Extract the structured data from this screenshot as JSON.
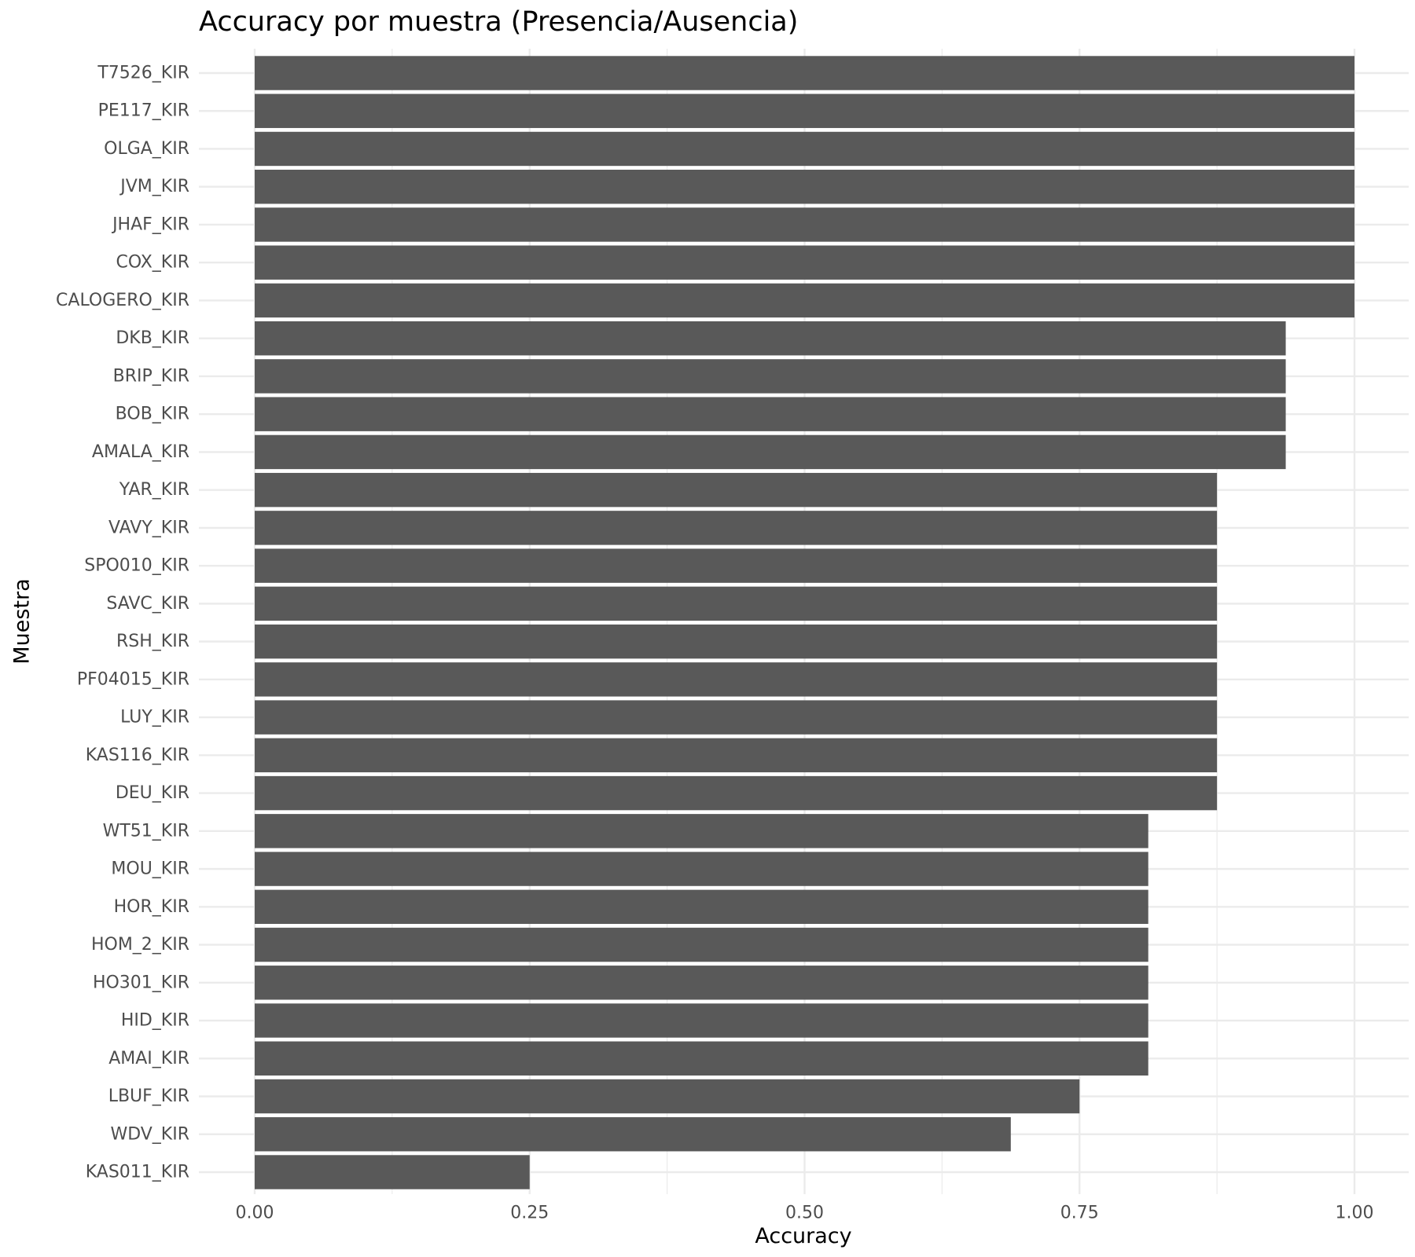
{
  "chart_data": {
    "type": "bar",
    "orientation": "horizontal",
    "title": "Accuracy por muestra (Presencia/Ausencia)",
    "xlabel": "Accuracy",
    "ylabel": "Muestra",
    "xlim": [
      0,
      1
    ],
    "x_ticks": [
      "0.00",
      "0.25",
      "0.50",
      "0.75",
      "1.00"
    ],
    "grid": true,
    "bar_color": "#595959",
    "grid_color": "#ebebeb",
    "categories": [
      "T7526_KIR",
      "PE117_KIR",
      "OLGA_KIR",
      "JVM_KIR",
      "JHAF_KIR",
      "COX_KIR",
      "CALOGERO_KIR",
      "DKB_KIR",
      "BRIP_KIR",
      "BOB_KIR",
      "AMALA_KIR",
      "YAR_KIR",
      "VAVY_KIR",
      "SPO010_KIR",
      "SAVC_KIR",
      "RSH_KIR",
      "PF04015_KIR",
      "LUY_KIR",
      "KAS116_KIR",
      "DEU_KIR",
      "WT51_KIR",
      "MOU_KIR",
      "HOR_KIR",
      "HOM_2_KIR",
      "HO301_KIR",
      "HID_KIR",
      "AMAI_KIR",
      "LBUF_KIR",
      "WDV_KIR",
      "KAS011_KIR"
    ],
    "values": [
      1.0,
      1.0,
      1.0,
      1.0,
      1.0,
      1.0,
      1.0,
      0.9375,
      0.9375,
      0.9375,
      0.9375,
      0.875,
      0.875,
      0.875,
      0.875,
      0.875,
      0.875,
      0.875,
      0.875,
      0.875,
      0.8125,
      0.8125,
      0.8125,
      0.8125,
      0.8125,
      0.8125,
      0.8125,
      0.75,
      0.6875,
      0.25
    ]
  }
}
